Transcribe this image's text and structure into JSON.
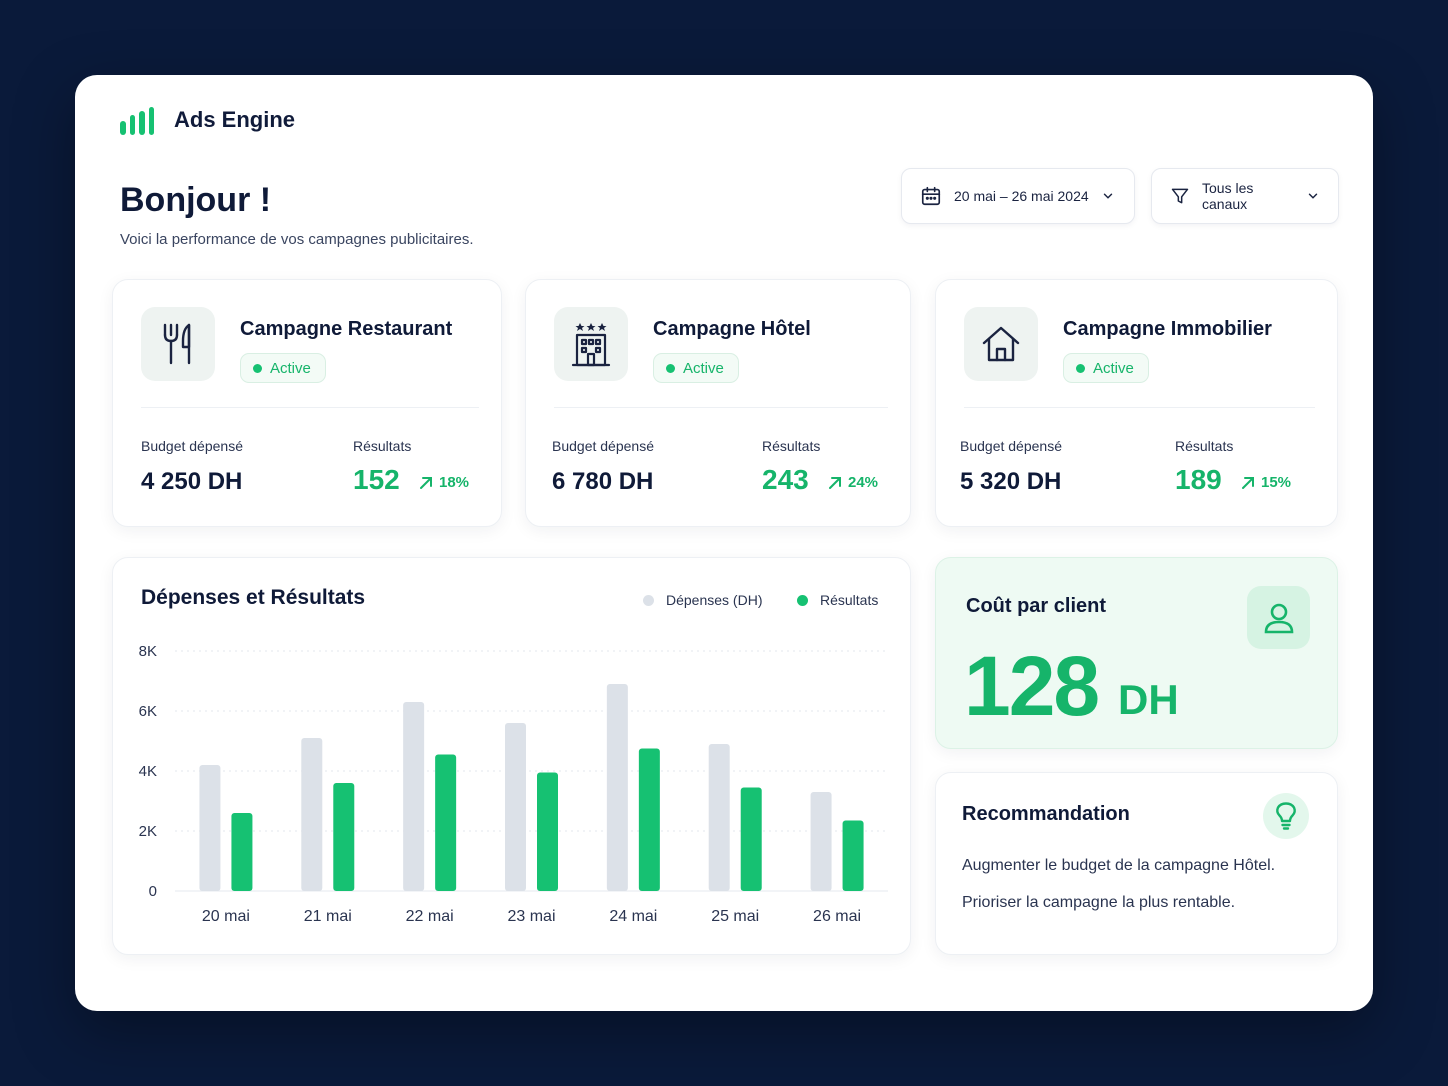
{
  "app": {
    "title": "Ads Engine"
  },
  "header": {
    "greeting": "Bonjour !",
    "subtitle": "Voici la performance de vos campagnes publicitaires.",
    "date_range": "20 mai – 26 mai 2024",
    "channel_filter": "Tous les canaux"
  },
  "campaigns": [
    {
      "name": "Campagne Restaurant",
      "status": "Active",
      "budget_label": "Budget dépensé",
      "budget": "4 250 DH",
      "results_label": "Résultats",
      "results": "152",
      "trend": "18%",
      "icon": "utensils-icon"
    },
    {
      "name": "Campagne Hôtel",
      "status": "Active",
      "budget_label": "Budget dépensé",
      "budget": "6 780 DH",
      "results_label": "Résultats",
      "results": "243",
      "trend": "24%",
      "icon": "hotel-icon"
    },
    {
      "name": "Campagne Immobilier",
      "status": "Active",
      "budget_label": "Budget dépensé",
      "budget": "5 320 DH",
      "results_label": "Résultats",
      "results": "189",
      "trend": "15%",
      "icon": "house-icon"
    }
  ],
  "chart_data": {
    "type": "bar",
    "title": "Dépenses et Résultats",
    "categories": [
      "20 mai",
      "21 mai",
      "22 mai",
      "23 mai",
      "24 mai",
      "25 mai",
      "26 mai"
    ],
    "series": [
      {
        "name": "Dépenses (DH)",
        "values": [
          4200,
          5100,
          6300,
          5600,
          6900,
          4900,
          3300
        ]
      },
      {
        "name": "Résultats",
        "values": [
          2600,
          3600,
          4550,
          3950,
          4750,
          3450,
          2350
        ]
      }
    ],
    "yticks": [
      "0",
      "2K",
      "4K",
      "6K",
      "8K"
    ],
    "ylim": [
      0,
      8000
    ],
    "grid": true,
    "legend_position": "top-right"
  },
  "cost_per_client": {
    "label": "Coût par client",
    "value": "128",
    "unit": "DH"
  },
  "recommendation": {
    "title": "Recommandation",
    "lines": [
      "Augmenter le budget de la campagne Hôtel.",
      "Prioriser la campagne la plus rentable."
    ]
  },
  "colors": {
    "accent": "#16c172",
    "spend": "#dce1e8",
    "background": "#0a1a3a"
  }
}
